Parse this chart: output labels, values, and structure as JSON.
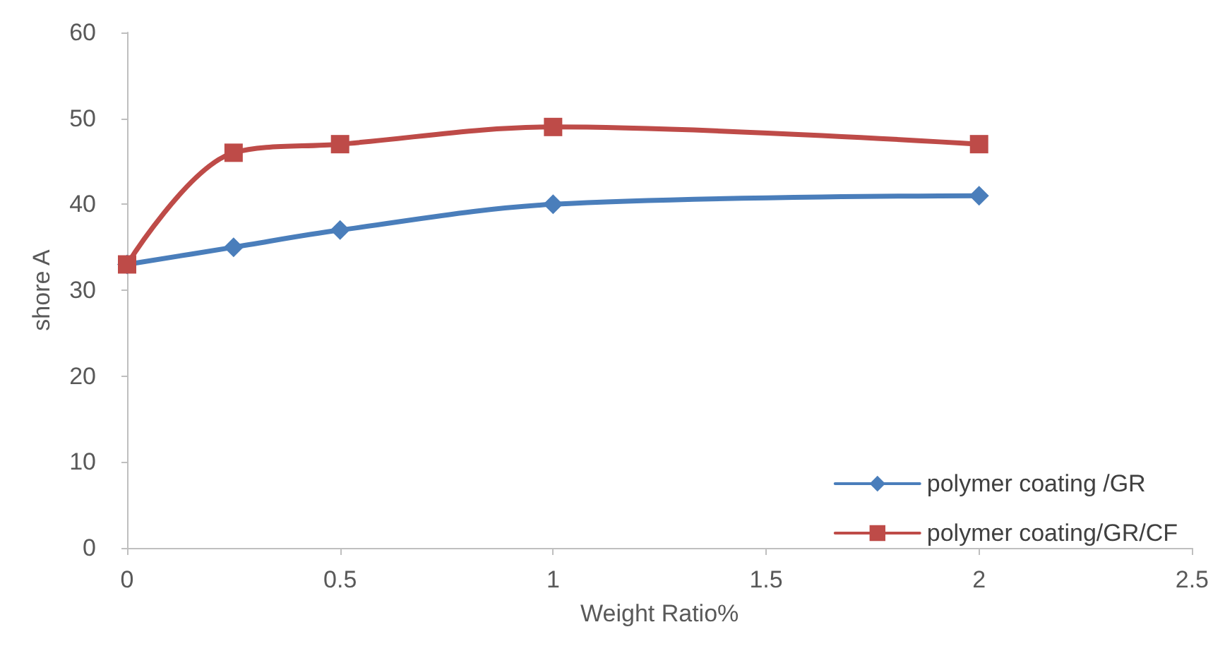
{
  "chart_data": {
    "type": "line",
    "xlabel": "Weight Ratio%",
    "ylabel": "shore A",
    "x": [
      0,
      0.25,
      0.5,
      1,
      2
    ],
    "series": [
      {
        "name": "polymer coating /GR",
        "color": "#4a7ebb",
        "marker": "diamond",
        "values": [
          33,
          35,
          37,
          40,
          41
        ]
      },
      {
        "name": "polymer coating/GR/CF",
        "color": "#be4b48",
        "marker": "square",
        "values": [
          33,
          46,
          47,
          49,
          47
        ]
      }
    ],
    "xlim": [
      0,
      2.5
    ],
    "xticks": [
      0,
      0.5,
      1,
      1.5,
      2,
      2.5
    ],
    "ylim": [
      0,
      60
    ],
    "yticks": [
      0,
      10,
      20,
      30,
      40,
      50,
      60
    ],
    "grid": false,
    "legend": "bottom right",
    "line_style": "solid"
  }
}
